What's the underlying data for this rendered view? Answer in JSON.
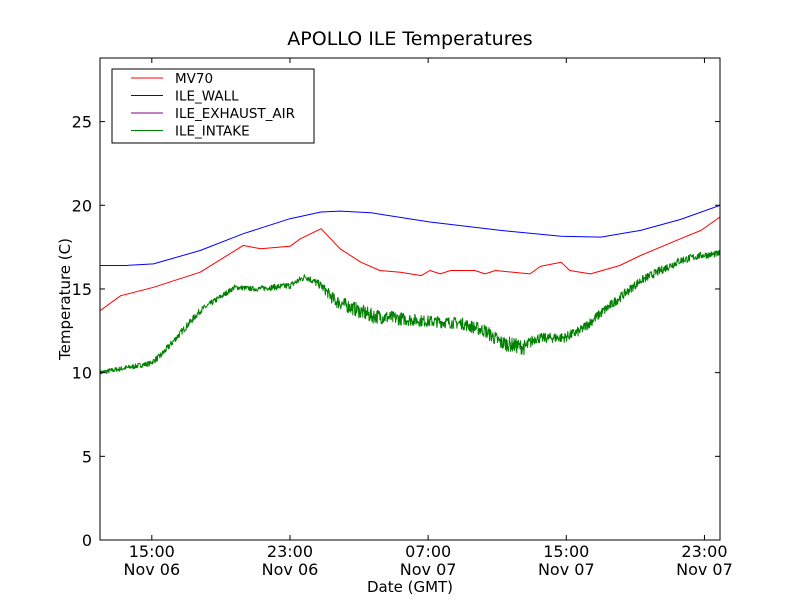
{
  "chart_data": {
    "type": "line",
    "title": "APOLLO ILE Temperatures",
    "xlabel": "Date (GMT)",
    "ylabel": "Temperature (C)",
    "x_units": "hours since Nov 06 12:00 GMT",
    "xlim": [
      0,
      35.9
    ],
    "ylim": [
      0,
      28.8
    ],
    "grid": false,
    "legend_position": "top-left",
    "yticks": [
      {
        "value": 0,
        "label": "0"
      },
      {
        "value": 5,
        "label": "5"
      },
      {
        "value": 10,
        "label": "10"
      },
      {
        "value": 15,
        "label": "15"
      },
      {
        "value": 20,
        "label": "20"
      },
      {
        "value": 25,
        "label": "25"
      }
    ],
    "xticks": [
      {
        "value": 3,
        "time": "15:00",
        "date": "Nov 06"
      },
      {
        "value": 11,
        "time": "23:00",
        "date": "Nov 06"
      },
      {
        "value": 19,
        "time": "07:00",
        "date": "Nov 07"
      },
      {
        "value": 27,
        "time": "15:00",
        "date": "Nov 07"
      },
      {
        "value": 35,
        "time": "23:00",
        "date": "Nov 07"
      }
    ],
    "series": [
      {
        "name": "MV70",
        "color": "#ff0000",
        "points": [
          [
            0,
            13.7
          ],
          [
            1.2,
            14.6
          ],
          [
            3.1,
            15.1
          ],
          [
            5.8,
            16.0
          ],
          [
            8.3,
            17.6
          ],
          [
            9.3,
            17.4
          ],
          [
            11,
            17.55
          ],
          [
            11.6,
            18.0
          ],
          [
            12.8,
            18.6
          ],
          [
            13.9,
            17.4
          ],
          [
            15.1,
            16.6
          ],
          [
            16.2,
            16.1
          ],
          [
            17.4,
            16.0
          ],
          [
            18.6,
            15.8
          ],
          [
            19.1,
            16.1
          ],
          [
            19.7,
            15.9
          ],
          [
            20.3,
            16.1
          ],
          [
            21.7,
            16.1
          ],
          [
            22.3,
            15.9
          ],
          [
            22.9,
            16.1
          ],
          [
            24.9,
            15.9
          ],
          [
            25.5,
            16.35
          ],
          [
            26.7,
            16.6
          ],
          [
            27.2,
            16.1
          ],
          [
            28.4,
            15.9
          ],
          [
            30.1,
            16.4
          ],
          [
            31.3,
            17.0
          ],
          [
            33.6,
            18.0
          ],
          [
            34.8,
            18.5
          ],
          [
            35.9,
            19.3
          ]
        ]
      },
      {
        "name": "ILE_WALL",
        "color": "#0000ff",
        "points": [
          [
            0,
            16.4
          ],
          [
            1.5,
            16.4
          ],
          [
            3.1,
            16.5
          ],
          [
            5.8,
            17.3
          ],
          [
            8.3,
            18.3
          ],
          [
            11,
            19.2
          ],
          [
            12.8,
            19.6
          ],
          [
            13.9,
            19.65
          ],
          [
            15.7,
            19.55
          ],
          [
            19.1,
            19.0
          ],
          [
            23.2,
            18.5
          ],
          [
            26.7,
            18.15
          ],
          [
            29,
            18.1
          ],
          [
            31.3,
            18.5
          ],
          [
            33.6,
            19.15
          ],
          [
            35.9,
            20.0
          ]
        ]
      },
      {
        "name": "ILE_EXHAUST_AIR",
        "color": "#800080",
        "points": []
      },
      {
        "name": "ILE_INTAKE",
        "color": "#008000",
        "points": [
          [
            0,
            10.0
          ],
          [
            2.9,
            10.55
          ],
          [
            3.5,
            11.0
          ],
          [
            5.8,
            13.7
          ],
          [
            7.8,
            15.1
          ],
          [
            9,
            15.0
          ],
          [
            11,
            15.2
          ],
          [
            11.9,
            15.75
          ],
          [
            12.8,
            15.2
          ],
          [
            13.6,
            14.3
          ],
          [
            15.7,
            13.4
          ],
          [
            18.6,
            13.1
          ],
          [
            20.9,
            12.95
          ],
          [
            22.3,
            12.5
          ],
          [
            23.2,
            11.8
          ],
          [
            24.6,
            11.5
          ],
          [
            25.2,
            12.05
          ],
          [
            26.9,
            12.1
          ],
          [
            27.8,
            12.5
          ],
          [
            29,
            13.55
          ],
          [
            31.3,
            15.5
          ],
          [
            33.6,
            16.7
          ],
          [
            34.8,
            17.0
          ],
          [
            35.9,
            17.1
          ]
        ],
        "noise": [
          0.15,
          0.15,
          0.2,
          0.2,
          0.15,
          0.15,
          0.2,
          0.2,
          0.25,
          0.4,
          0.45,
          0.35,
          0.35,
          0.4,
          0.45,
          0.45,
          0.3,
          0.3,
          0.3,
          0.3,
          0.25,
          0.25,
          0.2,
          0.2
        ]
      }
    ]
  }
}
